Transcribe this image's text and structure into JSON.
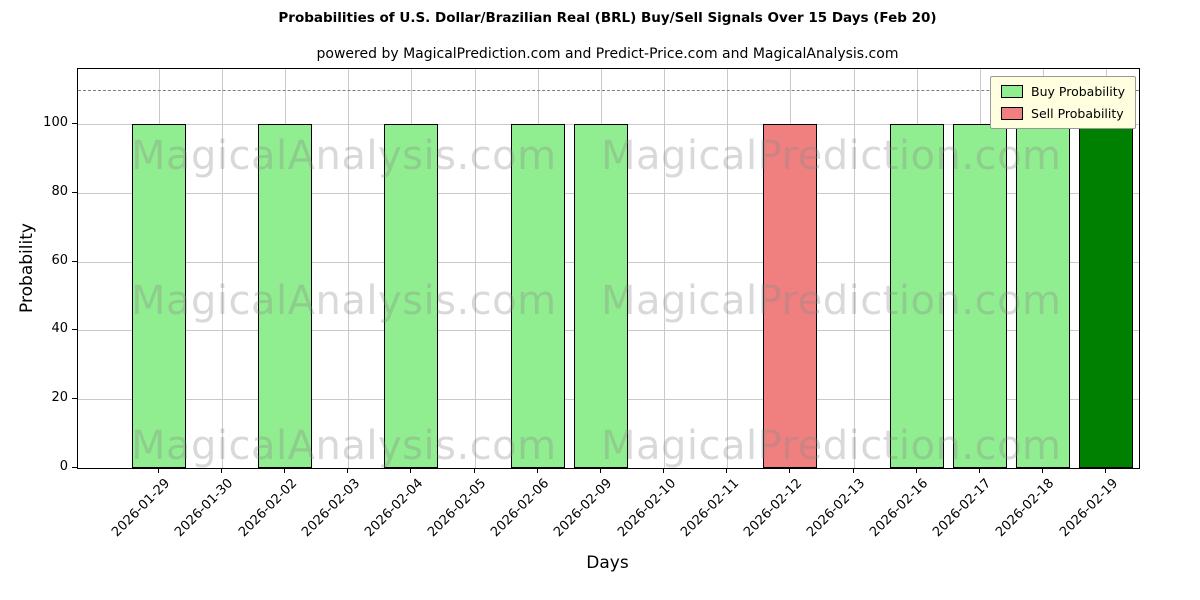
{
  "chart_data": {
    "type": "bar",
    "title": "Probabilities of U.S. Dollar/Brazilian Real (BRL) Buy/Sell Signals Over 15 Days (Feb 20)",
    "subtitle": "powered by MagicalPrediction.com and Predict-Price.com and MagicalAnalysis.com",
    "xlabel": "Days",
    "ylabel": "Probability",
    "ylim": [
      0,
      116
    ],
    "yticks": [
      0,
      20,
      40,
      60,
      80,
      100
    ],
    "threshold_line_y": 110,
    "grid": true,
    "categories": [
      "2026-01-29",
      "2026-01-30",
      "2026-02-02",
      "2026-02-03",
      "2026-02-04",
      "2026-02-05",
      "2026-02-06",
      "2026-02-09",
      "2026-02-10",
      "2026-02-11",
      "2026-02-12",
      "2026-02-13",
      "2026-02-16",
      "2026-02-17",
      "2026-02-18",
      "2026-02-19"
    ],
    "series": [
      {
        "name": "Buy Probability",
        "color": "#90EE90",
        "values": [
          100,
          0,
          100,
          0,
          100,
          0,
          100,
          100,
          0,
          0,
          0,
          0,
          100,
          100,
          100,
          100
        ]
      },
      {
        "name": "Sell Probability",
        "color": "#F08080",
        "values": [
          0,
          0,
          0,
          0,
          0,
          0,
          0,
          0,
          0,
          0,
          100,
          0,
          0,
          0,
          0,
          0
        ]
      }
    ],
    "bar_overrides": [
      {
        "index": 15,
        "color": "#008000"
      }
    ],
    "legend": {
      "position": "upper right",
      "background": "#FFFFE0",
      "entries": [
        {
          "label": "Buy Probability",
          "color": "#90EE90"
        },
        {
          "label": "Sell Probability",
          "color": "#F08080"
        }
      ]
    },
    "watermarks": {
      "left": "MagicalAnalysis.com",
      "right": "MagicalPrediction.com",
      "rows": 3
    }
  }
}
